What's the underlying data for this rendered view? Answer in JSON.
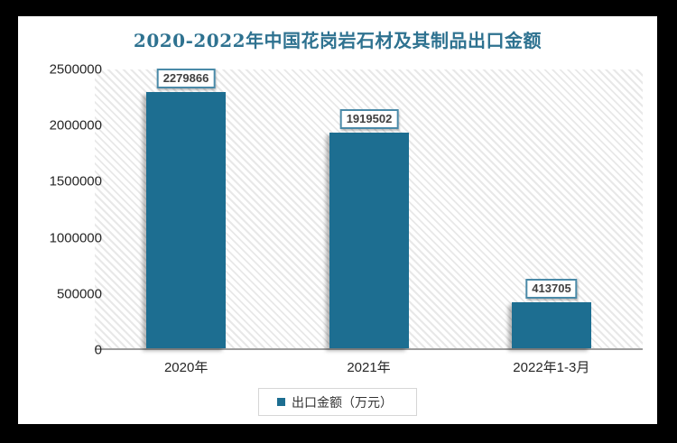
{
  "title": "2020-2022年中国花岗岩石材及其制品出口金额",
  "legend": {
    "label": "出口金额（万元）"
  },
  "colors": {
    "frame": "#000000",
    "panel": "#ffffff",
    "bar": "#1d6e91",
    "title_text": "#2e7290",
    "label_border": "#4a8aa8",
    "label_text": "#404040",
    "axis_line": "#9e9e9e"
  },
  "chart_data": {
    "type": "bar",
    "title": "2020-2022年中国花岗岩石材及其制品出口金额",
    "categories": [
      "2020年",
      "2021年",
      "2022年1-3月"
    ],
    "series": [
      {
        "name": "出口金额（万元）",
        "values": [
          2279866,
          1919502,
          413705
        ]
      }
    ],
    "data_labels": [
      "2279866",
      "1919502",
      "413705"
    ],
    "xlabel": "",
    "ylabel": "",
    "ylim": [
      0,
      2500000
    ],
    "yticks": [
      0,
      500000,
      1000000,
      1500000,
      2000000,
      2500000
    ],
    "grid": false,
    "legend_position": "bottom",
    "plot_background": "diagonal-hatch"
  }
}
